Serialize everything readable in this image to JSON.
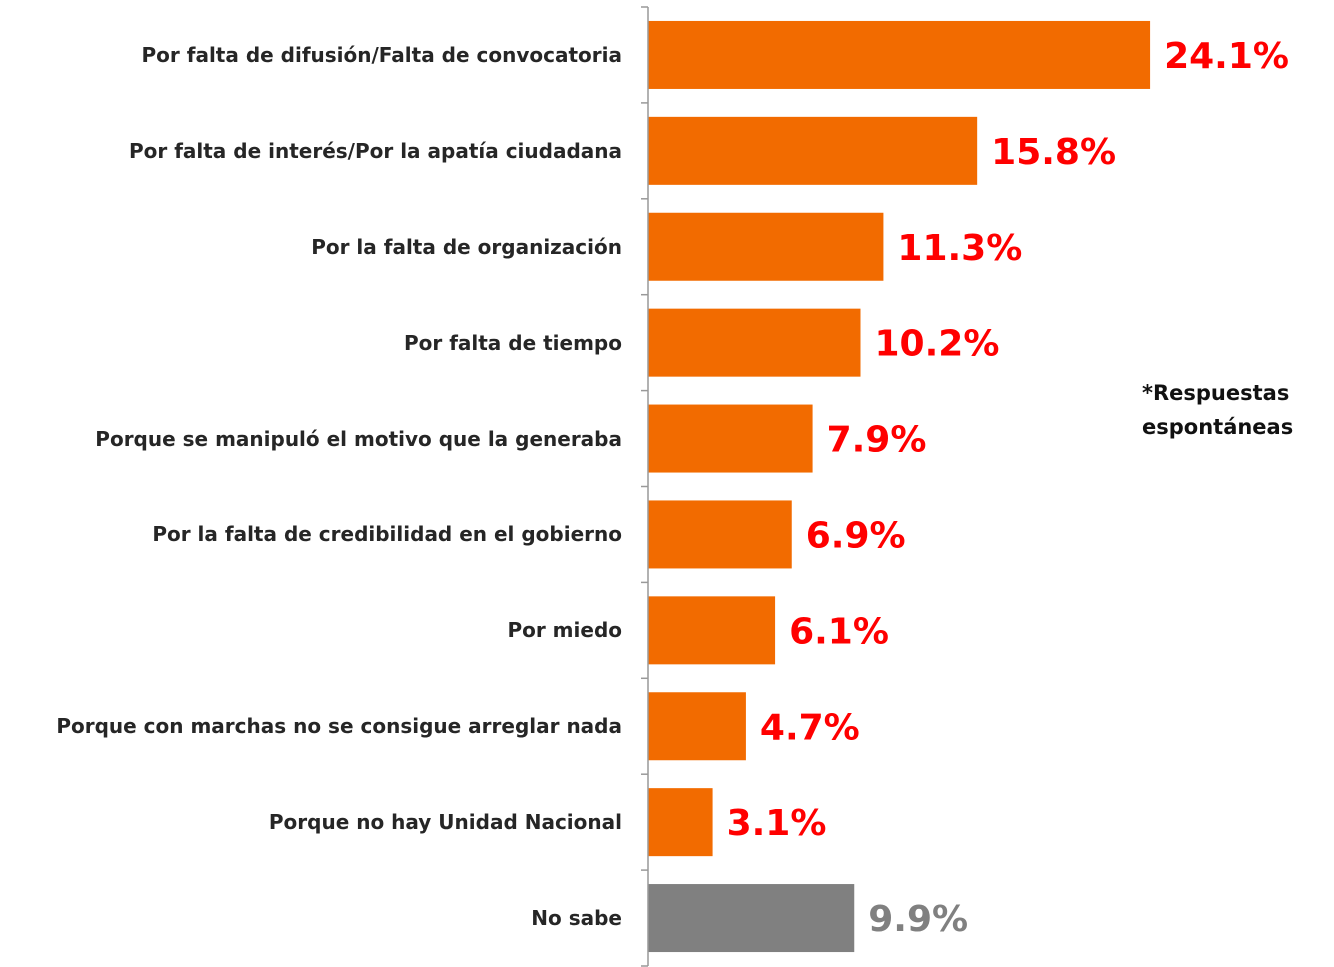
{
  "chart_data": {
    "type": "barh",
    "categories": [
      "Por falta de difusión/Falta de convocatoria",
      "Por falta de interés/Por la apatía ciudadana",
      "Por la falta de organización",
      "Por falta de tiempo",
      "Porque se manipuló el motivo que la generaba",
      "Por la falta de credibilidad en el gobierno",
      "Por miedo",
      "Porque con marchas no se consigue arreglar nada",
      "Porque no hay Unidad Nacional",
      "No sabe"
    ],
    "values": [
      24.1,
      15.8,
      11.3,
      10.2,
      7.9,
      6.9,
      6.1,
      4.7,
      3.1,
      9.9
    ],
    "value_labels": [
      "24.1%",
      "15.8%",
      "11.3%",
      "10.2%",
      "7.9%",
      "6.9%",
      "6.1%",
      "4.7%",
      "3.1%",
      "9.9%"
    ],
    "colors": [
      "#f26b00",
      "#f26b00",
      "#f26b00",
      "#f26b00",
      "#f26b00",
      "#f26b00",
      "#f26b00",
      "#f26b00",
      "#f26b00",
      "#808080"
    ],
    "label_colors": [
      "#ff0000",
      "#ff0000",
      "#ff0000",
      "#ff0000",
      "#ff0000",
      "#ff0000",
      "#ff0000",
      "#ff0000",
      "#ff0000",
      "#808080"
    ],
    "xlim": [
      0,
      30
    ],
    "annotation": [
      "*Respuestas",
      "espontáneas"
    ]
  }
}
